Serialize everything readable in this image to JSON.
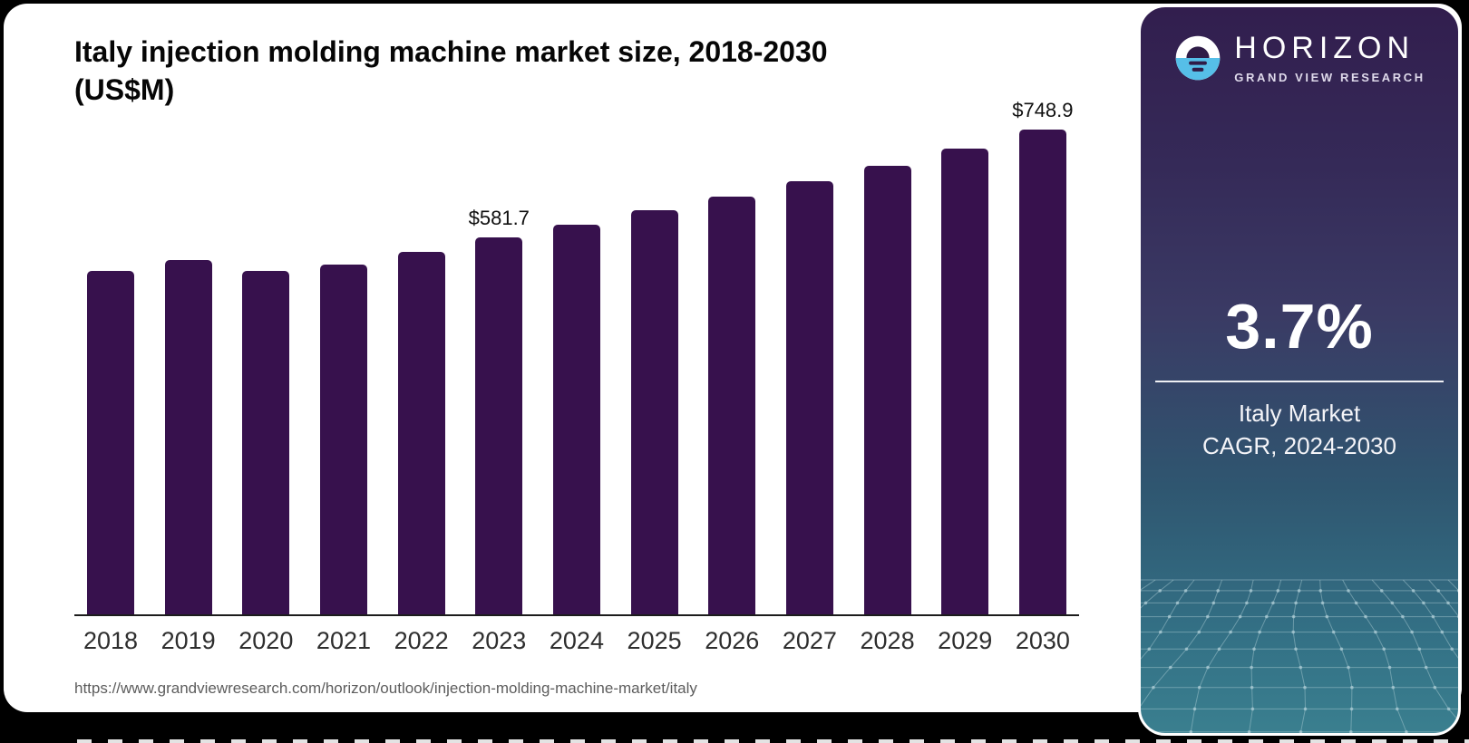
{
  "header": {
    "title_line1": "Italy injection molding machine market size, 2018-2030",
    "title_line2": "(US$M)"
  },
  "footer": {
    "source_url": "https://www.grandviewresearch.com/horizon/outlook/injection-molding-machine-market/italy"
  },
  "chart_data": {
    "type": "bar",
    "title": "Italy injection molding machine market size, 2018-2030 (US$M)",
    "categories": [
      "2018",
      "2019",
      "2020",
      "2021",
      "2022",
      "2023",
      "2024",
      "2025",
      "2026",
      "2027",
      "2028",
      "2029",
      "2030"
    ],
    "values": [
      530,
      548,
      531,
      541,
      560,
      581.7,
      602,
      624,
      646,
      669,
      693,
      720,
      748.9
    ],
    "value_labels": {
      "2023": "$581.7",
      "2030": "$748.9"
    },
    "bar_color": "#37114d",
    "xlabel": "",
    "ylabel": "",
    "ylim": [
      0,
      790
    ],
    "grid": false,
    "legend": false
  },
  "sidebar": {
    "brand": "HORIZON",
    "brand_subtitle": "GRAND VIEW RESEARCH",
    "stat_value": "3.7%",
    "stat_label_line1": "Italy Market",
    "stat_label_line2": "CAGR, 2024-2030",
    "colors": {
      "accent_blue": "#56bfe8",
      "panel_dark": "#2f1c47",
      "mesh_line": "#b2d0d8"
    }
  }
}
